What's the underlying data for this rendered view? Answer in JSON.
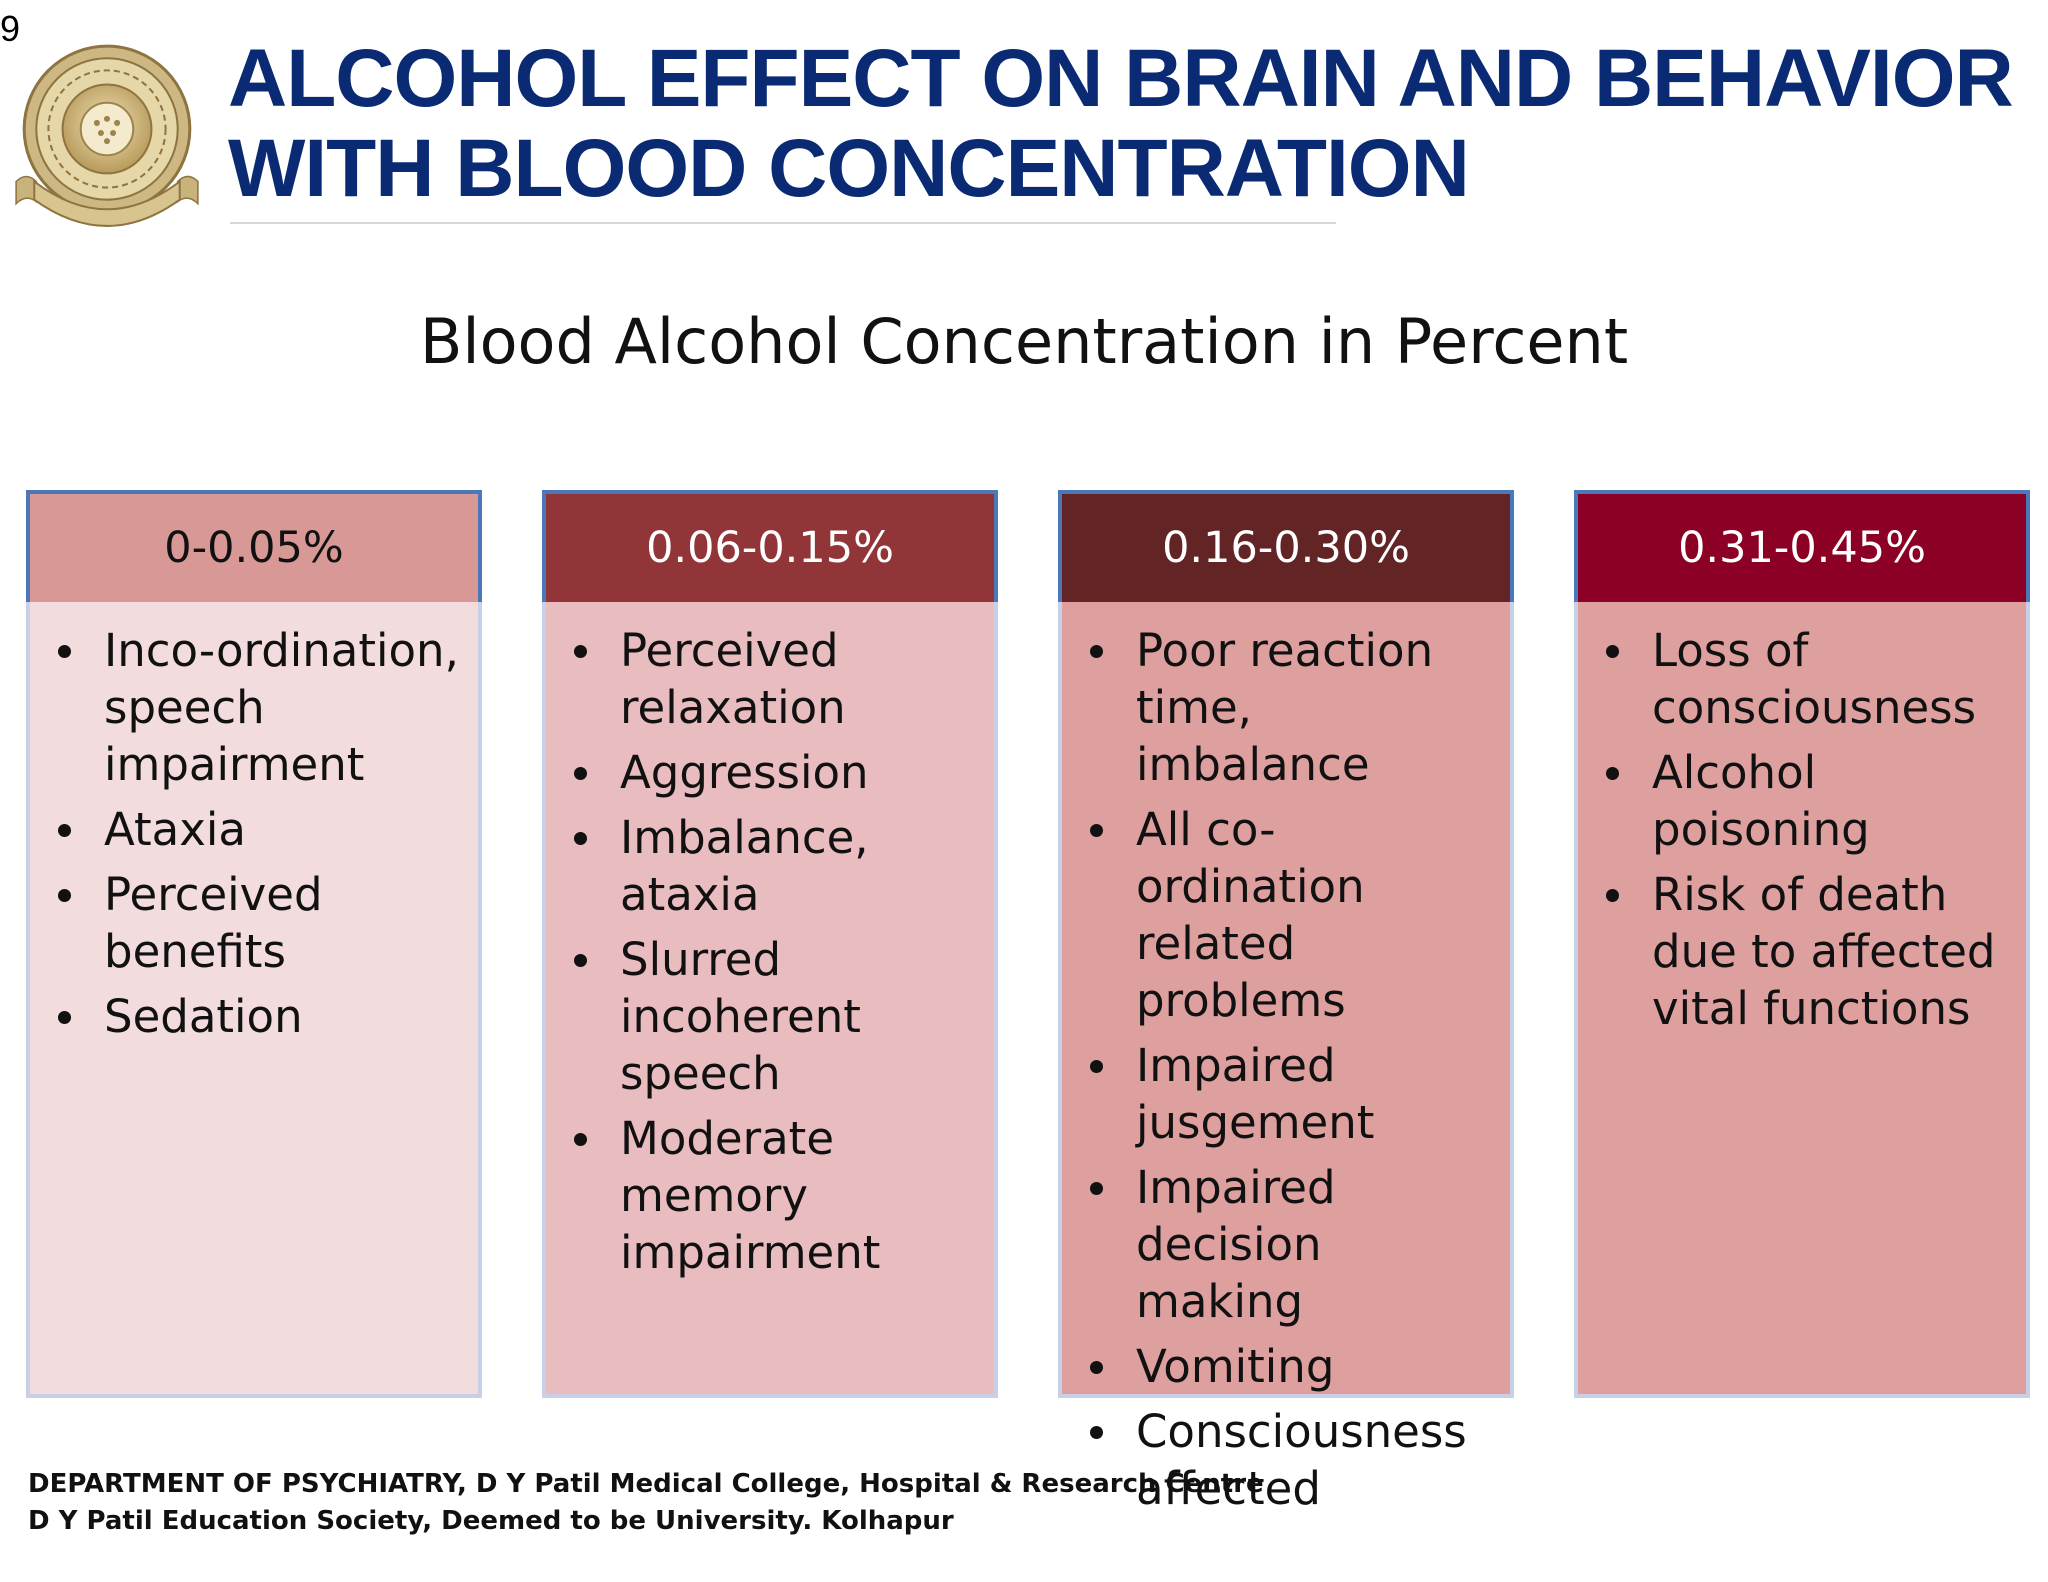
{
  "slide_number": "9",
  "title_lines": [
    "ALCOHOL EFFECT ON BRAIN AND BEHAVIOR",
    "WITH BLOOD CONCENTRATION"
  ],
  "subtitle": "Blood Alcohol Concentration in Percent",
  "colors": {
    "title": "#0a2b74",
    "header_1": "#d89896",
    "header_2": "#923538",
    "header_3": "#632426",
    "header_4": "#8b0024",
    "body_1": "#f3dcdd",
    "body_2": "#e9bcc0",
    "body_3": "#dea09f",
    "body_4": "#dea09f"
  },
  "columns": [
    {
      "header": "0-0.05%",
      "items": [
        "Inco-ordination, speech impairment",
        "Ataxia",
        "Perceived benefits",
        "Sedation"
      ]
    },
    {
      "header": "0.06-0.15%",
      "items": [
        "Perceived relaxation",
        "Aggression",
        "Imbalance, ataxia",
        "Slurred incoherent speech",
        "Moderate memory impairment"
      ]
    },
    {
      "header": "0.16-0.30%",
      "items": [
        "Poor reaction time, imbalance",
        "All co-ordination related problems",
        "Impaired jusgement",
        "Impaired decision making",
        "Vomiting",
        "Consciousness affected"
      ]
    },
    {
      "header": "0.31-0.45%",
      "items": [
        "Loss of consciousness",
        "Alcohol poisoning",
        "Risk of death due to affected vital functions"
      ]
    }
  ],
  "footer_lines": [
    "DEPARTMENT OF PSYCHIATRY, D Y Patil Medical College, Hospital & Research Centre",
    "D Y Patil Education Society, Deemed to be University. Kolhapur"
  ]
}
